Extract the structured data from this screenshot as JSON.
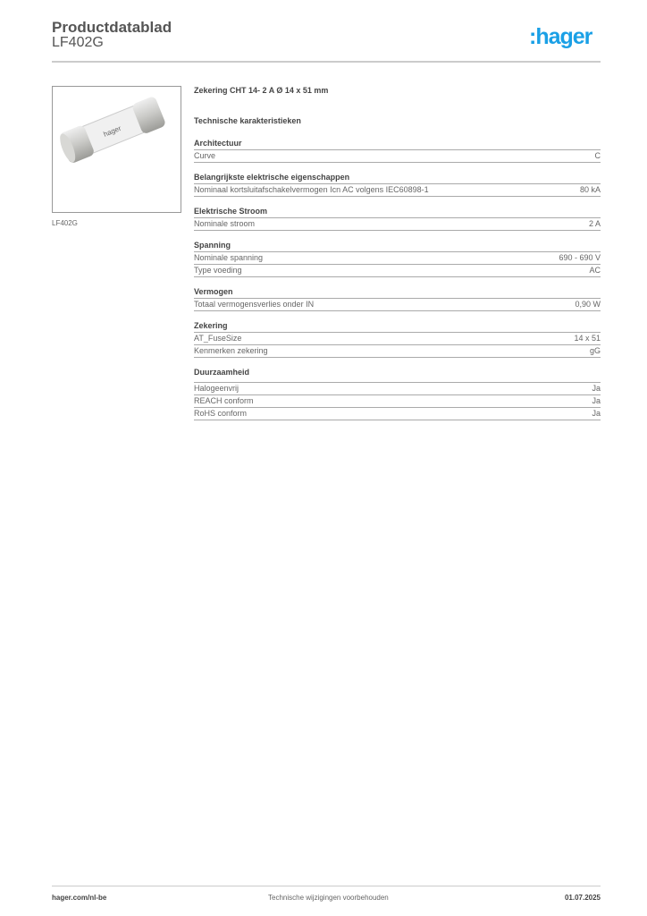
{
  "header": {
    "title": "Productdatablad",
    "product_code": "LF402G",
    "logo_text": ":hager",
    "brand_color": "#1aa0e6"
  },
  "image": {
    "caption": "LF402G"
  },
  "main": {
    "product_name": "Zekering CHT 14- 2 A Ø 14 x 51 mm",
    "section_title": "Technische karakteristieken",
    "sections": [
      {
        "title": "Architectuur",
        "rows": [
          {
            "label": "Curve",
            "value": "C"
          }
        ]
      },
      {
        "title": "Belangrijkste elektrische eigenschappen",
        "rows": [
          {
            "label": "Nominaal kortsluitafschakelvermogen Icn AC volgens IEC60898-1",
            "value": "80 kA"
          }
        ]
      },
      {
        "title": "Elektrische Stroom",
        "rows": [
          {
            "label": "Nominale stroom",
            "value": "2 A"
          }
        ]
      },
      {
        "title": "Spanning",
        "rows": [
          {
            "label": "Nominale spanning",
            "value": "690 - 690 V"
          },
          {
            "label": "Type voeding",
            "value": "AC"
          }
        ]
      },
      {
        "title": "Vermogen",
        "rows": [
          {
            "label": "Totaal vermogensverlies onder IN",
            "value": "0,90 W"
          }
        ]
      },
      {
        "title": "Zekering",
        "rows": [
          {
            "label": "AT_FuseSize",
            "value": "14 x 51"
          },
          {
            "label": "Kenmerken zekering",
            "value": "gG"
          }
        ]
      },
      {
        "title": "Duurzaamheid",
        "rows": [
          {
            "label": "Halogeenvrij",
            "value": "Ja"
          },
          {
            "label": "REACH conform",
            "value": "Ja"
          },
          {
            "label": "RoHS conform",
            "value": "Ja"
          }
        ]
      }
    ]
  },
  "footer": {
    "website": "hager.com/nl-be",
    "disclaimer": "Technische wijzigingen voorbehouden",
    "date": "01.07.2025"
  }
}
